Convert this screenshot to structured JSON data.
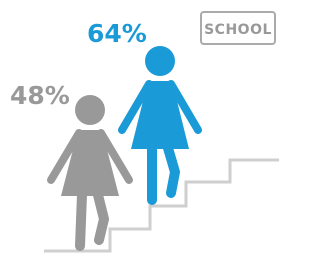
{
  "tag": "SCHOOL",
  "figures": [
    {
      "label": "48%"
    },
    {
      "label": "64%"
    }
  ]
}
